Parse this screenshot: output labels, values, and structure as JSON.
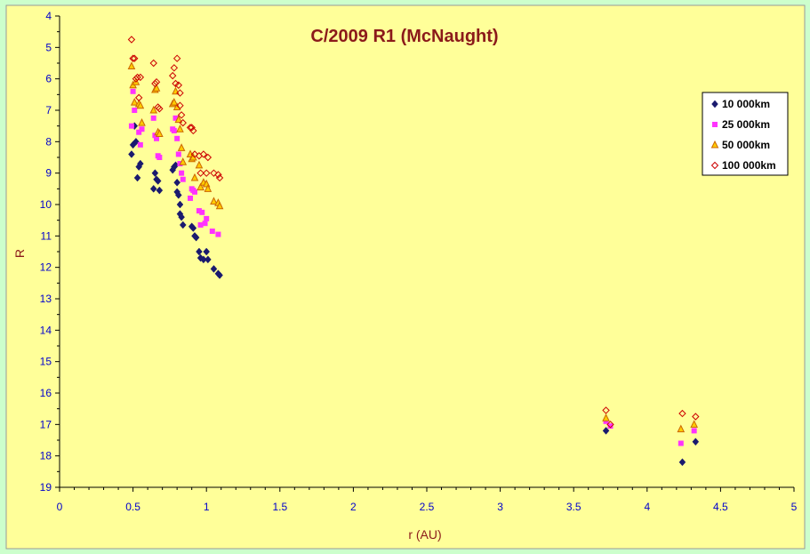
{
  "chart_data": {
    "type": "scatter",
    "title": "C/2009 R1 (McNaught)",
    "xlabel": "r (AU)",
    "ylabel": "R",
    "xlim": [
      0,
      5
    ],
    "ylim": [
      4,
      19
    ],
    "y_inverted": true,
    "xticks": [
      0,
      0.5,
      1,
      1.5,
      2,
      2.5,
      3,
      3.5,
      4,
      4.5,
      5
    ],
    "yticks": [
      4,
      5,
      6,
      7,
      8,
      9,
      10,
      11,
      12,
      13,
      14,
      15,
      16,
      17,
      18,
      19
    ],
    "legend_position": "right",
    "colors": {
      "background": "#ccffcc",
      "plot_area": "#ffff99",
      "axis": "#000000",
      "tick_text": "#0000cc",
      "title": "#8b1a1a"
    },
    "series": [
      {
        "name": "10 000km",
        "marker": "diamond-filled",
        "color": "#1a1a6e",
        "x": [
          0.49,
          0.5,
          0.51,
          0.52,
          0.54,
          0.55,
          0.53,
          0.64,
          0.65,
          0.66,
          0.67,
          0.68,
          0.77,
          0.78,
          0.79,
          0.8,
          0.8,
          0.81,
          0.82,
          0.82,
          0.83,
          0.84,
          0.9,
          0.91,
          0.92,
          0.93,
          0.95,
          0.96,
          0.98,
          1.0,
          1.01,
          1.05,
          1.08,
          1.09,
          3.72,
          4.24,
          4.33
        ],
        "y": [
          8.4,
          8.1,
          7.5,
          8.0,
          8.8,
          8.7,
          9.15,
          9.5,
          9.0,
          9.2,
          9.25,
          9.55,
          8.9,
          8.8,
          8.75,
          9.3,
          9.6,
          9.7,
          10.0,
          10.3,
          10.4,
          10.65,
          10.7,
          10.75,
          11.0,
          11.05,
          11.5,
          11.7,
          11.75,
          11.5,
          11.75,
          12.05,
          12.2,
          12.25,
          17.2,
          18.2,
          17.55
        ]
      },
      {
        "name": "25 000km",
        "marker": "square-filled",
        "color": "#ff33ff",
        "x": [
          0.49,
          0.5,
          0.51,
          0.54,
          0.55,
          0.56,
          0.64,
          0.65,
          0.66,
          0.67,
          0.68,
          0.77,
          0.78,
          0.79,
          0.8,
          0.81,
          0.82,
          0.83,
          0.84,
          0.89,
          0.9,
          0.91,
          0.92,
          0.95,
          0.96,
          0.97,
          0.99,
          1.0,
          1.04,
          1.08,
          3.72,
          3.75,
          4.23,
          4.32
        ],
        "y": [
          7.5,
          6.4,
          7.0,
          7.7,
          8.1,
          7.6,
          7.25,
          7.8,
          7.9,
          8.45,
          8.5,
          7.6,
          7.65,
          7.25,
          7.9,
          8.4,
          8.7,
          9.0,
          9.2,
          9.8,
          9.5,
          9.55,
          9.6,
          10.2,
          10.65,
          10.25,
          10.6,
          10.45,
          10.85,
          10.95,
          16.9,
          17.05,
          17.6,
          17.2
        ]
      },
      {
        "name": "50 000km",
        "marker": "triangle-open",
        "color": "#cc6600",
        "fill": "#ffcc00",
        "x": [
          0.49,
          0.5,
          0.51,
          0.52,
          0.54,
          0.55,
          0.56,
          0.64,
          0.65,
          0.66,
          0.67,
          0.68,
          0.77,
          0.78,
          0.79,
          0.8,
          0.81,
          0.82,
          0.83,
          0.84,
          0.89,
          0.9,
          0.91,
          0.92,
          0.95,
          0.96,
          0.98,
          1.0,
          1.01,
          1.05,
          1.08,
          1.09,
          3.72,
          4.23,
          4.32
        ],
        "y": [
          5.6,
          6.2,
          6.75,
          6.1,
          6.8,
          6.85,
          7.4,
          7.0,
          6.35,
          6.3,
          7.7,
          7.75,
          6.8,
          6.75,
          6.4,
          6.9,
          7.3,
          7.6,
          8.2,
          8.65,
          8.4,
          8.55,
          8.5,
          9.15,
          8.75,
          9.45,
          9.3,
          9.35,
          9.5,
          9.9,
          9.95,
          10.05,
          16.8,
          17.15,
          17.0
        ]
      },
      {
        "name": "100 000km",
        "marker": "diamond-open",
        "color": "#cc0000",
        "x": [
          0.49,
          0.5,
          0.51,
          0.52,
          0.53,
          0.54,
          0.55,
          0.64,
          0.65,
          0.66,
          0.67,
          0.68,
          0.77,
          0.78,
          0.79,
          0.8,
          0.81,
          0.82,
          0.82,
          0.83,
          0.84,
          0.89,
          0.9,
          0.91,
          0.92,
          0.95,
          0.96,
          0.98,
          1.0,
          1.01,
          1.05,
          1.08,
          1.09,
          3.72,
          3.75,
          4.24,
          4.33
        ],
        "y": [
          4.75,
          5.35,
          5.35,
          6.0,
          5.95,
          6.6,
          5.95,
          5.5,
          6.15,
          6.1,
          6.9,
          6.95,
          5.9,
          5.65,
          6.15,
          5.35,
          6.2,
          6.45,
          6.85,
          7.15,
          7.4,
          7.55,
          7.55,
          7.65,
          8.4,
          8.45,
          9.0,
          8.4,
          9.0,
          8.5,
          9.0,
          9.05,
          9.15,
          16.55,
          17.0,
          16.65,
          16.75
        ]
      }
    ]
  }
}
